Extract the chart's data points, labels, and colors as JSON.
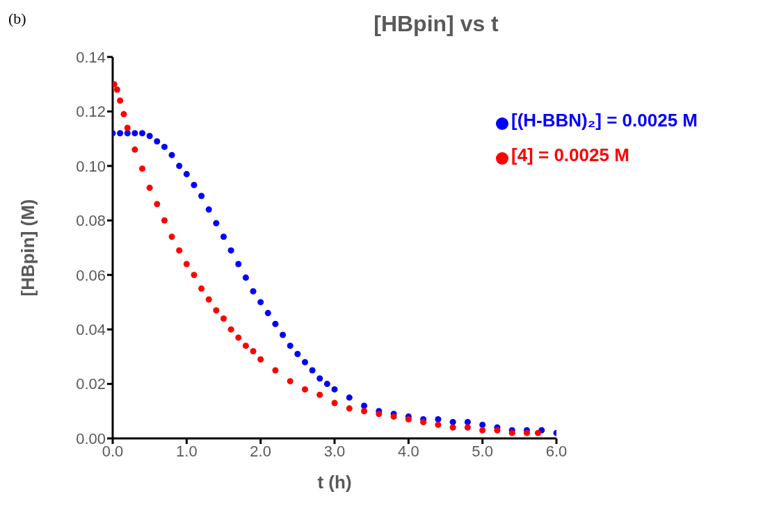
{
  "chart_data": {
    "type": "scatter",
    "title": "[HBpin] vs t",
    "annotations": [
      "(b)"
    ],
    "xlabel": "t (h)",
    "ylabel": "[HBpin]  (M)",
    "xlim": [
      0,
      6
    ],
    "xticks": [
      {
        "value": 0,
        "label": "0.0"
      },
      {
        "value": 1,
        "label": "1.0"
      },
      {
        "value": 2,
        "label": "2.0"
      },
      {
        "value": 3,
        "label": "3.0"
      },
      {
        "value": 4,
        "label": "4.0"
      },
      {
        "value": 5,
        "label": "5.0"
      },
      {
        "value": 6,
        "label": "6.0"
      }
    ],
    "ylim": [
      0,
      0.14
    ],
    "yticks": [
      {
        "value": 0,
        "label": "0.00"
      },
      {
        "value": 0.02,
        "label": "0.02"
      },
      {
        "value": 0.04,
        "label": "0.04"
      },
      {
        "value": 0.06,
        "label": "0.06"
      },
      {
        "value": 0.08,
        "label": "0.08"
      },
      {
        "value": 0.1,
        "label": "0.10"
      },
      {
        "value": 0.12,
        "label": "0.12"
      },
      {
        "value": 0.14,
        "label": "0.14"
      }
    ],
    "grid": false,
    "legend": "top right",
    "marker": "circle",
    "series": [
      {
        "name": "[(H-BBN)₂] = 0.0025 M",
        "color": "#0000ff",
        "x": [
          0,
          0.1,
          0.2,
          0.3,
          0.4,
          0.5,
          0.6,
          0.7,
          0.8,
          0.9,
          1.0,
          1.1,
          1.2,
          1.3,
          1.4,
          1.5,
          1.6,
          1.7,
          1.8,
          1.9,
          2.0,
          2.1,
          2.2,
          2.3,
          2.4,
          2.5,
          2.6,
          2.7,
          2.8,
          2.9,
          3.0,
          3.2,
          3.4,
          3.6,
          3.8,
          4.0,
          4.2,
          4.4,
          4.6,
          4.8,
          5.0,
          5.2,
          5.4,
          5.6,
          5.8,
          6.0
        ],
        "values": [
          0.112,
          0.112,
          0.112,
          0.112,
          0.112,
          0.111,
          0.109,
          0.107,
          0.104,
          0.1,
          0.097,
          0.093,
          0.089,
          0.084,
          0.079,
          0.074,
          0.069,
          0.064,
          0.059,
          0.054,
          0.05,
          0.046,
          0.042,
          0.038,
          0.034,
          0.031,
          0.028,
          0.025,
          0.022,
          0.02,
          0.018,
          0.015,
          0.012,
          0.01,
          0.009,
          0.008,
          0.007,
          0.007,
          0.006,
          0.006,
          0.005,
          0.004,
          0.003,
          0.003,
          0.003,
          0.002
        ]
      },
      {
        "name": "[4] = 0.0025 M",
        "color": "#ff0000",
        "x": [
          0.02,
          0.06,
          0.1,
          0.15,
          0.2,
          0.3,
          0.4,
          0.5,
          0.6,
          0.7,
          0.8,
          0.9,
          1.0,
          1.1,
          1.2,
          1.3,
          1.4,
          1.5,
          1.6,
          1.7,
          1.8,
          1.9,
          2.0,
          2.2,
          2.4,
          2.6,
          2.8,
          3.0,
          3.2,
          3.4,
          3.6,
          3.8,
          4.0,
          4.2,
          4.4,
          4.6,
          4.8,
          5.0,
          5.2,
          5.4,
          5.6,
          5.75
        ],
        "values": [
          0.13,
          0.128,
          0.124,
          0.119,
          0.114,
          0.106,
          0.099,
          0.092,
          0.086,
          0.08,
          0.074,
          0.069,
          0.064,
          0.06,
          0.055,
          0.051,
          0.047,
          0.044,
          0.04,
          0.037,
          0.034,
          0.032,
          0.029,
          0.025,
          0.021,
          0.018,
          0.016,
          0.013,
          0.011,
          0.01,
          0.009,
          0.008,
          0.007,
          0.006,
          0.005,
          0.004,
          0.004,
          0.003,
          0.003,
          0.002,
          0.002,
          0.002
        ]
      }
    ]
  }
}
